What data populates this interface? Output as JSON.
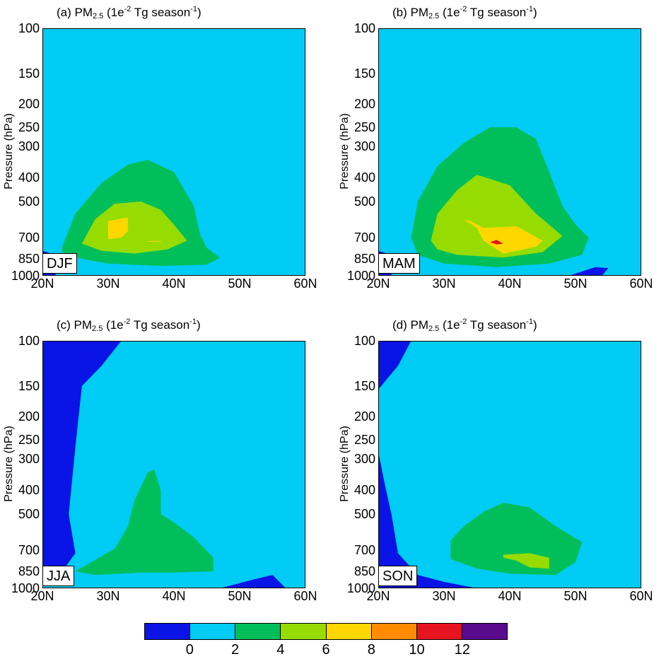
{
  "panels": [
    {
      "title_prefix": "(a) PM",
      "title_sub": "2.5",
      "title_mid": " (1e",
      "title_sup1": "-2",
      "title_mid2": " Tg season",
      "title_sup2": "-1",
      "title_end": ")",
      "season": "DJF",
      "ylabel": "Pressure (hPa)"
    },
    {
      "title_prefix": "(b) PM",
      "title_sub": "2.5",
      "title_mid": " (1e",
      "title_sup1": "-2",
      "title_mid2": " Tg season",
      "title_sup2": "-1",
      "title_end": ")",
      "season": "MAM",
      "ylabel": "Pressure (hPa)"
    },
    {
      "title_prefix": "(c) PM",
      "title_sub": "2.5",
      "title_mid": " (1e",
      "title_sup1": "-2",
      "title_mid2": " Tg season",
      "title_sup2": "-1",
      "title_end": ")",
      "season": "JJA",
      "ylabel": "Pressure (hPa)"
    },
    {
      "title_prefix": "(d) PM",
      "title_sub": "2.5",
      "title_mid": " (1e",
      "title_sup1": "-2",
      "title_mid2": " Tg season",
      "title_sup2": "-1",
      "title_end": ")",
      "season": "SON",
      "ylabel": "Pressure (hPa)"
    }
  ],
  "axes": {
    "yticks": [
      "100",
      "150",
      "200",
      "250",
      "300",
      "400",
      "500",
      "700",
      "850",
      "1000"
    ],
    "xticks": [
      "20N",
      "30N",
      "40N",
      "50N",
      "60N"
    ]
  },
  "colorbar": {
    "colors": [
      "#0a14e6",
      "#00ccf5",
      "#00bf5a",
      "#96dc00",
      "#ffd700",
      "#ff8c00",
      "#e6141e",
      "#5a0a8c"
    ],
    "labels": [
      "0",
      "2",
      "4",
      "6",
      "8",
      "10",
      "12"
    ]
  },
  "chart_data": {
    "type": "heatmap",
    "subtype": "filled latitude-pressure contour",
    "x_range": [
      20,
      60
    ],
    "y_scale": "log",
    "y_range": [
      1000,
      100
    ],
    "levels": [
      0,
      2,
      4,
      6,
      8,
      10,
      12
    ],
    "series": [
      {
        "name": "DJF",
        "contours": [
          {
            "level": "<0",
            "polygon": [
              [
                20,
                1000
              ],
              [
                20,
                790
              ],
              [
                22,
                820
              ],
              [
                22,
                1000
              ]
            ]
          },
          {
            "level": "2-4",
            "polygon": [
              [
                23,
                760
              ],
              [
                25,
                560
              ],
              [
                29,
                420
              ],
              [
                33,
                355
              ],
              [
                36,
                340
              ],
              [
                40,
                380
              ],
              [
                43,
                520
              ],
              [
                44,
                680
              ],
              [
                45,
                770
              ],
              [
                47,
                840
              ],
              [
                45,
                900
              ],
              [
                38,
                910
              ],
              [
                30,
                890
              ],
              [
                26,
                850
              ],
              [
                23,
                800
              ]
            ]
          },
          {
            "level": "4-6",
            "polygon": [
              [
                26,
                740
              ],
              [
                28,
                590
              ],
              [
                31,
                510
              ],
              [
                35,
                500
              ],
              [
                38,
                540
              ],
              [
                40,
                620
              ],
              [
                42,
                720
              ],
              [
                39,
                780
              ],
              [
                34,
                810
              ],
              [
                29,
                790
              ]
            ]
          },
          {
            "level": "6-8",
            "polygon": [
              [
                30,
                710
              ],
              [
                30,
                600
              ],
              [
                33,
                580
              ],
              [
                33,
                660
              ],
              [
                32,
                700
              ]
            ]
          },
          {
            "level": "6-8",
            "polygon": [
              [
                36,
                722
              ],
              [
                38,
                722
              ],
              [
                38,
                727
              ],
              [
                36,
                727
              ]
            ]
          }
        ]
      },
      {
        "name": "MAM",
        "contours": [
          {
            "level": "<0",
            "polygon": [
              [
                20,
                1000
              ],
              [
                20,
                790
              ],
              [
                22,
                820
              ],
              [
                22,
                1000
              ]
            ]
          },
          {
            "level": "<0",
            "polygon": [
              [
                49,
                1000
              ],
              [
                53,
                920
              ],
              [
                55,
                930
              ],
              [
                54,
                1000
              ]
            ]
          },
          {
            "level": "2-4",
            "polygon": [
              [
                25,
                700
              ],
              [
                26,
                500
              ],
              [
                29,
                360
              ],
              [
                33,
                290
              ],
              [
                37,
                250
              ],
              [
                41,
                250
              ],
              [
                44,
                280
              ],
              [
                46,
                380
              ],
              [
                48,
                520
              ],
              [
                50,
                620
              ],
              [
                52,
                700
              ],
              [
                51,
                820
              ],
              [
                46,
                890
              ],
              [
                38,
                920
              ],
              [
                30,
                890
              ],
              [
                26,
                820
              ]
            ]
          },
          {
            "level": "4-6",
            "polygon": [
              [
                28,
                720
              ],
              [
                29,
                560
              ],
              [
                32,
                450
              ],
              [
                35,
                390
              ],
              [
                40,
                430
              ],
              [
                44,
                560
              ],
              [
                48,
                690
              ],
              [
                45,
                800
              ],
              [
                39,
                840
              ],
              [
                32,
                820
              ],
              [
                29,
                780
              ]
            ]
          },
          {
            "level": "6-8",
            "polygon": [
              [
                33,
                590
              ],
              [
                35,
                640
              ],
              [
                36,
                720
              ],
              [
                39,
                810
              ],
              [
                44,
                760
              ],
              [
                45,
                720
              ],
              [
                41,
                630
              ],
              [
                36,
                640
              ],
              [
                34,
                600
              ]
            ]
          },
          {
            "level": "8-10",
            "polygon": [
              [
                37,
                730
              ],
              [
                38,
                715
              ],
              [
                39,
                740
              ],
              [
                38,
                745
              ]
            ]
          }
        ]
      },
      {
        "name": "JJA",
        "contours": [
          {
            "level": "<0",
            "polygon": [
              [
                20,
                100
              ],
              [
                32,
                100
              ],
              [
                29,
                125
              ],
              [
                26,
                150
              ],
              [
                25,
                270
              ],
              [
                24,
                500
              ],
              [
                25,
                720
              ],
              [
                23,
                850
              ],
              [
                20,
                860
              ]
            ]
          },
          {
            "level": "<0",
            "polygon": [
              [
                47,
                1000
              ],
              [
                52,
                920
              ],
              [
                55,
                880
              ],
              [
                57,
                1000
              ]
            ]
          },
          {
            "level": "2-4",
            "polygon": [
              [
                25,
                850
              ],
              [
                31,
                690
              ],
              [
                33,
                560
              ],
              [
                34,
                440
              ],
              [
                36,
                340
              ],
              [
                37,
                330
              ],
              [
                38,
                400
              ],
              [
                38,
                500
              ],
              [
                40,
                540
              ],
              [
                43,
                620
              ],
              [
                46,
                750
              ],
              [
                46,
                850
              ],
              [
                40,
                860
              ],
              [
                35,
                860
              ],
              [
                28,
                880
              ]
            ]
          }
        ]
      },
      {
        "name": "SON",
        "contours": [
          {
            "level": "<0",
            "polygon": [
              [
                20,
                100
              ],
              [
                25,
                100
              ],
              [
                23,
                125
              ],
              [
                20,
                155
              ]
            ]
          },
          {
            "level": "<0",
            "polygon": [
              [
                20,
                280
              ],
              [
                21,
                380
              ],
              [
                22,
                500
              ],
              [
                23,
                720
              ],
              [
                26,
                880
              ],
              [
                30,
                940
              ],
              [
                35,
                1000
              ],
              [
                20,
                1000
              ]
            ]
          },
          {
            "level": "2-4",
            "polygon": [
              [
                31,
                640
              ],
              [
                33,
                560
              ],
              [
                36,
                490
              ],
              [
                39,
                450
              ],
              [
                43,
                470
              ],
              [
                47,
                560
              ],
              [
                51,
                650
              ],
              [
                50,
                780
              ],
              [
                47,
                880
              ],
              [
                40,
                870
              ],
              [
                35,
                830
              ],
              [
                31,
                760
              ]
            ]
          },
          {
            "level": "4-6",
            "polygon": [
              [
                39,
                730
              ],
              [
                43,
                720
              ],
              [
                46,
                750
              ],
              [
                46,
                830
              ],
              [
                43,
                820
              ],
              [
                41,
                770
              ],
              [
                39,
                750
              ]
            ]
          }
        ]
      }
    ]
  }
}
